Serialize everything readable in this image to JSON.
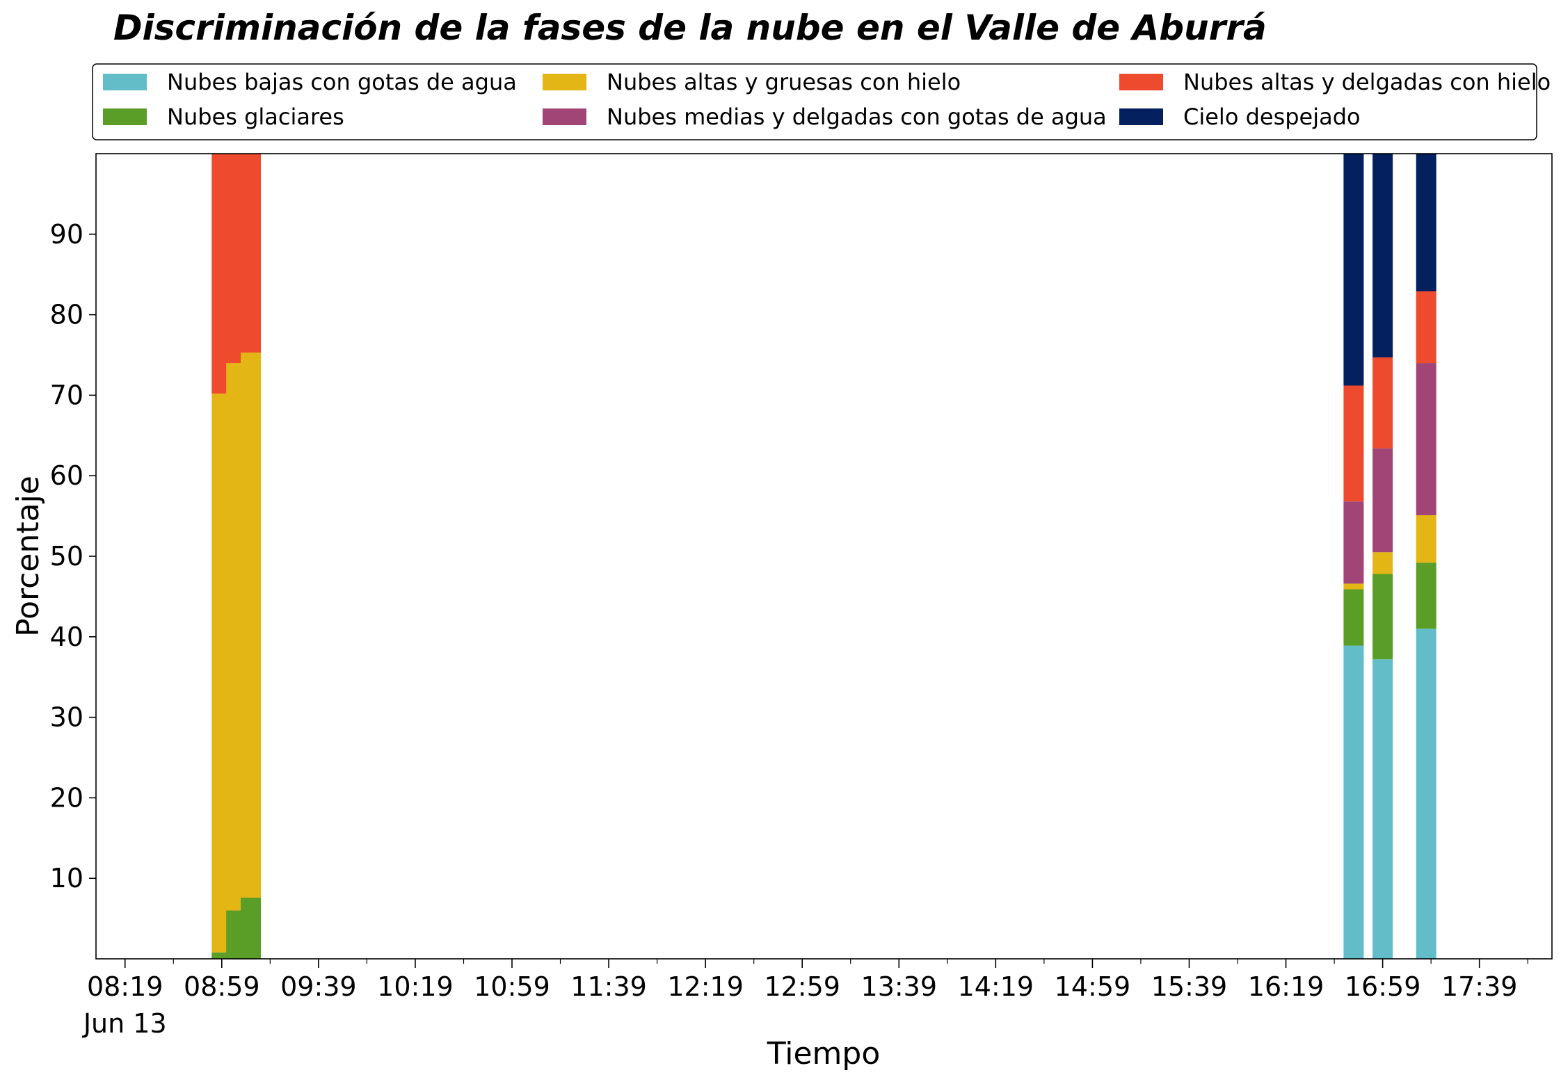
{
  "chart_data": {
    "type": "bar",
    "stacked": true,
    "title": "Discriminación de la fases de la nube en el Valle de Aburrá",
    "xlabel": "Tiempo",
    "ylabel": "Porcentaje",
    "ylim": [
      0,
      100
    ],
    "yticks": [
      "10",
      "20",
      "30",
      "40",
      "50",
      "60",
      "70",
      "80",
      "90"
    ],
    "xticks": [
      "08:19",
      "08:59",
      "09:39",
      "10:19",
      "10:59",
      "11:39",
      "12:19",
      "12:59",
      "13:39",
      "14:19",
      "14:59",
      "15:39",
      "16:19",
      "16:59",
      "17:39"
    ],
    "xtick_sublabel": "Jun 13",
    "x": [
      "08:59",
      "09:05",
      "09:11",
      "16:47",
      "16:59",
      "17:17"
    ],
    "legend_position": "top",
    "series": [
      {
        "name": "Nubes bajas con gotas de agua",
        "color": "#63BDC8",
        "values": [
          0,
          0,
          0,
          38.9,
          37.2,
          41.0
        ]
      },
      {
        "name": "Nubes glaciares",
        "color": "#5A9E27",
        "values": [
          0.8,
          6.0,
          7.6,
          7.0,
          10.6,
          8.2
        ]
      },
      {
        "name": "Nubes altas y gruesas con hielo",
        "color": "#E3B616",
        "values": [
          69.4,
          68.0,
          67.7,
          0.7,
          2.7,
          5.9
        ]
      },
      {
        "name": "Nubes medias y delgadas con gotas de agua",
        "color": "#A14576",
        "values": [
          0,
          0,
          0,
          10.2,
          12.9,
          18.9
        ]
      },
      {
        "name": "Nubes altas y delgadas con hielo",
        "color": "#EE4A2D",
        "values": [
          29.8,
          26.0,
          24.7,
          14.4,
          11.3,
          8.9
        ]
      },
      {
        "name": "Cielo despejado",
        "color": "#04205E",
        "values": [
          0,
          0,
          0,
          28.8,
          25.3,
          17.1
        ]
      }
    ]
  }
}
